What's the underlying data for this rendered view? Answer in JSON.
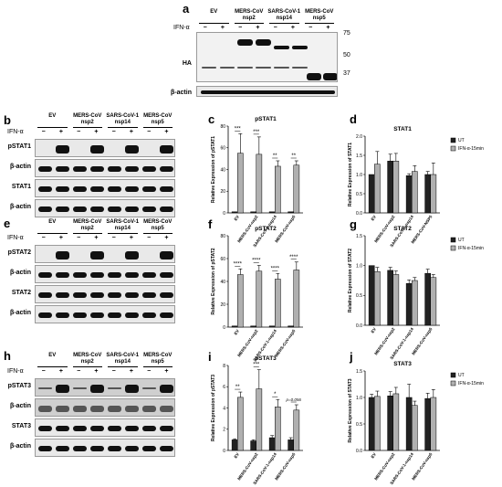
{
  "panels": {
    "a": "a",
    "b": "b",
    "c": "c",
    "d": "d",
    "e": "e",
    "f": "f",
    "g": "g",
    "h": "h",
    "i": "i",
    "j": "j"
  },
  "groups": [
    "EV",
    "MERS-CoV nsp2",
    "SARS-CoV-1 nsp14",
    "MERS-CoV nsp5"
  ],
  "ifn_label": "IFN-α",
  "minus": "−",
  "plus": "+",
  "blot_a": {
    "rows": [
      "HA",
      "β-actin"
    ],
    "markers": [
      "75",
      "50",
      "37"
    ]
  },
  "blot_b": {
    "rows": [
      "pSTAT1",
      "β-actin",
      "STAT1",
      "β-actin"
    ]
  },
  "blot_e": {
    "rows": [
      "pSTAT2",
      "β-actin",
      "STAT2",
      "β-actin"
    ]
  },
  "blot_h": {
    "rows": [
      "pSTAT3",
      "β-actin",
      "STAT3",
      "β-actin"
    ]
  },
  "colors": {
    "ut": "#222222",
    "ifn": "#b0b0b0"
  },
  "chart_data": [
    {
      "id": "c",
      "type": "bar",
      "title": "pSTAT1",
      "ylabel": "Relative Expression of pSTAT1",
      "ylim": [
        0,
        80
      ],
      "yticks": [
        0,
        20,
        40,
        60,
        80
      ],
      "categories": [
        "EV",
        "MERS-CoV-nsp2",
        "SARS-CoV-1-nsp14",
        "MERS-CoV-nsp5"
      ],
      "series": [
        {
          "values": [
            1,
            1,
            1,
            1
          ]
        },
        {
          "values": [
            55,
            54,
            43,
            44
          ]
        }
      ],
      "errors": [
        [
          0,
          0,
          0,
          0
        ],
        [
          18,
          16,
          5,
          4
        ]
      ],
      "sig": [
        "***",
        "***",
        "**",
        "**"
      ]
    },
    {
      "id": "d",
      "type": "bar",
      "title": "STAT1",
      "ylabel": "Relative Expression of STAT1",
      "ylim": [
        0,
        2.0
      ],
      "yticks": [
        0.0,
        0.5,
        1.0,
        1.5,
        2.0
      ],
      "categories": [
        "EV",
        "MERS-CoV-nsp2",
        "SARS-CoV-1-nsp14",
        "MERS-CoV-NSP5"
      ],
      "series": [
        {
          "name": "UT",
          "values": [
            1.0,
            1.35,
            0.97,
            1.0
          ]
        },
        {
          "name": "IFN-α-15min",
          "values": [
            1.27,
            1.35,
            1.08,
            1.0
          ]
        }
      ],
      "errors": [
        [
          0,
          0.18,
          0.05,
          0.08
        ],
        [
          0.33,
          0.2,
          0.15,
          0.3
        ]
      ],
      "sig": [
        "",
        "",
        "",
        ""
      ]
    },
    {
      "id": "f",
      "type": "bar",
      "title": "pSTAT2",
      "ylabel": "Relative Expression of pSTAT2",
      "ylim": [
        0,
        80
      ],
      "yticks": [
        0,
        20,
        40,
        60,
        80
      ],
      "categories": [
        "EV",
        "MERS-CoV-nsp2",
        "SARS-CoV-1-nsp14",
        "MERS-CoV-nsp5"
      ],
      "series": [
        {
          "values": [
            1,
            1,
            1,
            1
          ]
        },
        {
          "values": [
            46,
            49,
            42,
            50
          ]
        }
      ],
      "errors": [
        [
          0,
          0,
          0,
          0
        ],
        [
          5,
          5,
          5,
          7
        ]
      ],
      "sig": [
        "****",
        "****",
        "****",
        "****"
      ]
    },
    {
      "id": "g",
      "type": "bar",
      "title": "STAT2",
      "ylabel": "Relative Expression of STAT2",
      "ylim": [
        0,
        1.5
      ],
      "yticks": [
        0.0,
        0.5,
        1.0,
        1.5
      ],
      "categories": [
        "EV",
        "MERS-CoV-nsp2",
        "SARS-CoV-1-nsp14",
        "MERS-CoV-nsp5"
      ],
      "series": [
        {
          "name": "UT",
          "values": [
            1.0,
            0.92,
            0.7,
            0.87
          ]
        },
        {
          "name": "IFN-α-15min",
          "values": [
            0.9,
            0.85,
            0.75,
            0.8
          ]
        }
      ],
      "errors": [
        [
          0,
          0.05,
          0.06,
          0.07
        ],
        [
          0.07,
          0.06,
          0.05,
          0.05
        ]
      ],
      "sig": [
        "",
        "",
        "",
        ""
      ]
    },
    {
      "id": "i",
      "type": "bar",
      "title": "pSTAT3",
      "ylabel": "Relative Expression of pSTAT3",
      "ylim": [
        0,
        8
      ],
      "yticks": [
        0,
        2,
        4,
        6,
        8
      ],
      "categories": [
        "EV",
        "MERS-CoV-nsp2",
        "SARS-CoV-1-nsp14",
        "MERS-CoV-nsp5"
      ],
      "series": [
        {
          "values": [
            1.0,
            0.9,
            1.2,
            1.0
          ]
        },
        {
          "values": [
            5.0,
            5.8,
            4.1,
            3.8
          ]
        }
      ],
      "errors": [
        [
          0.1,
          0.1,
          0.2,
          0.2
        ],
        [
          0.5,
          1.8,
          0.7,
          0.5
        ]
      ],
      "sig": [
        "**",
        "***",
        "*",
        "p=0.056"
      ]
    },
    {
      "id": "j",
      "type": "bar",
      "title": "STAT3",
      "ylabel": "Relative Expression of STAT3",
      "ylim": [
        0,
        1.5
      ],
      "yticks": [
        0.0,
        0.5,
        1.0,
        1.5
      ],
      "categories": [
        "EV",
        "MERS-CoV-nsp2",
        "SARS-CoV-1-nsp14",
        "MERS-CoV-nsp5"
      ],
      "series": [
        {
          "name": "UT",
          "values": [
            1.0,
            1.03,
            1.0,
            0.98
          ]
        },
        {
          "name": "IFN-α-15min",
          "values": [
            1.02,
            1.07,
            0.85,
            1.0
          ]
        }
      ],
      "errors": [
        [
          0.06,
          0.08,
          0.25,
          0.1
        ],
        [
          0.1,
          0.12,
          0.08,
          0.15
        ]
      ],
      "sig": [
        "",
        "",
        "",
        ""
      ]
    }
  ]
}
